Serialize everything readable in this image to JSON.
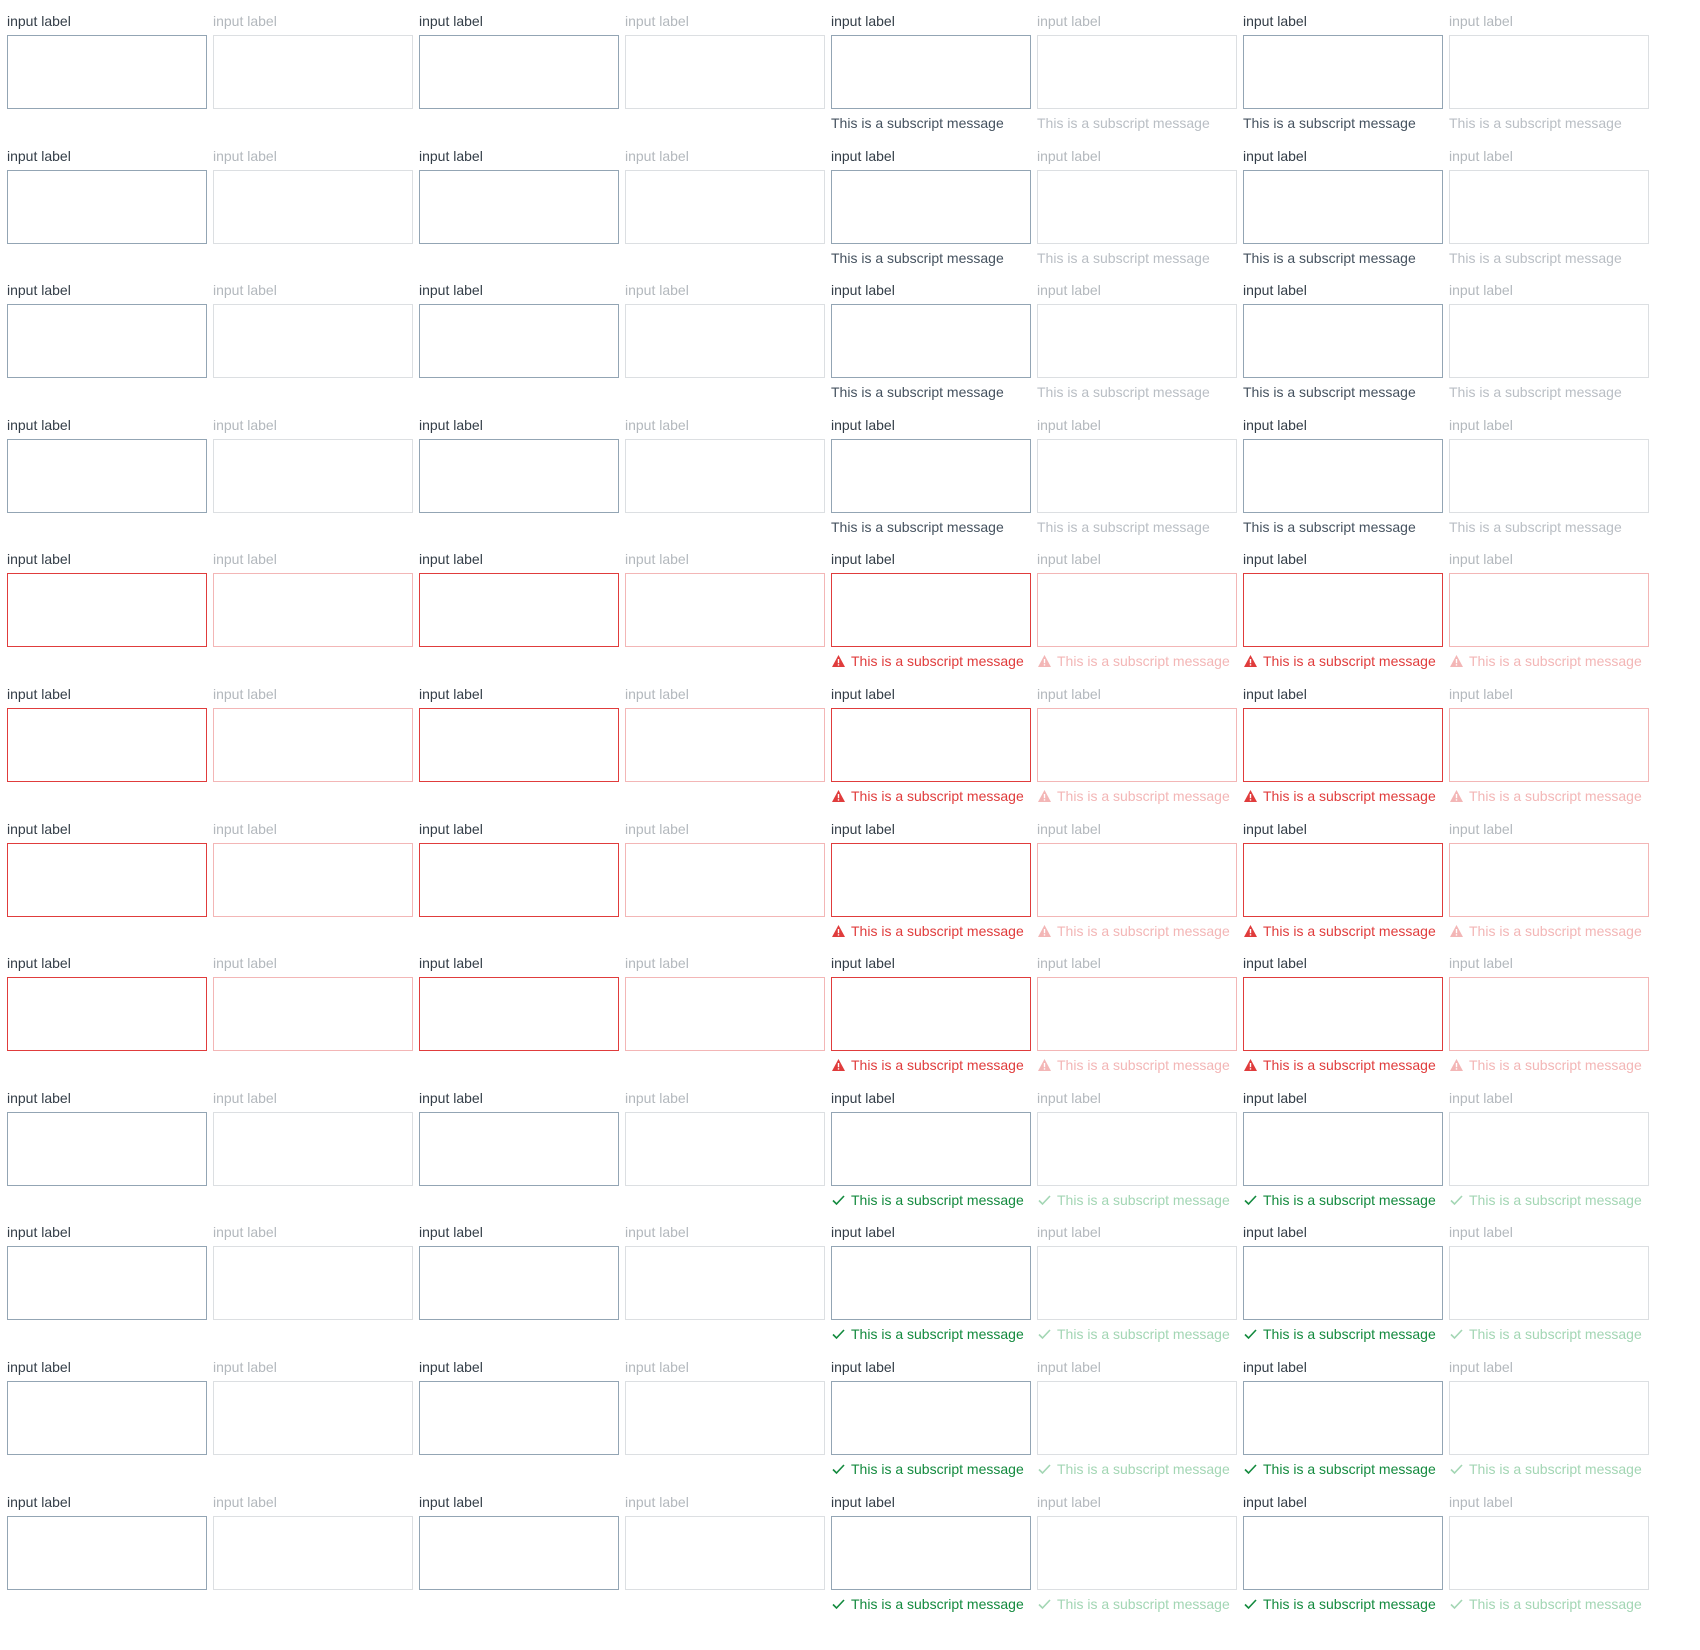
{
  "label": "input label",
  "subscript": "This is a subscript message",
  "columns": [
    {
      "disabled": false,
      "has_subscript": false
    },
    {
      "disabled": true,
      "has_subscript": false
    },
    {
      "disabled": false,
      "has_subscript": false
    },
    {
      "disabled": true,
      "has_subscript": false
    },
    {
      "disabled": false,
      "has_subscript": true
    },
    {
      "disabled": true,
      "has_subscript": true
    },
    {
      "disabled": false,
      "has_subscript": true
    },
    {
      "disabled": true,
      "has_subscript": true
    }
  ],
  "rows": [
    "default",
    "default",
    "default",
    "default",
    "error",
    "error",
    "error",
    "error",
    "success",
    "success",
    "success",
    "success"
  ],
  "states": {
    "default": {
      "icon": "",
      "border": "#93a5b4",
      "border_disabled": "#dcdfe2",
      "sub_color": "#45525f",
      "sub_color_disabled": "#b9bec4"
    },
    "error": {
      "icon": "warning-triangle-icon",
      "border": "#e03c3c",
      "border_disabled": "#f3b6b6",
      "sub_color": "#e03c3c",
      "sub_color_disabled": "#f3b6b6"
    },
    "success": {
      "icon": "checkmark-icon",
      "border": "#93a5b4",
      "border_disabled": "#dcdfe2",
      "sub_color": "#138a3e",
      "sub_color_disabled": "#a3d6b4"
    }
  },
  "label_color": "#333d47",
  "label_color_disabled": "#b3b8bd"
}
